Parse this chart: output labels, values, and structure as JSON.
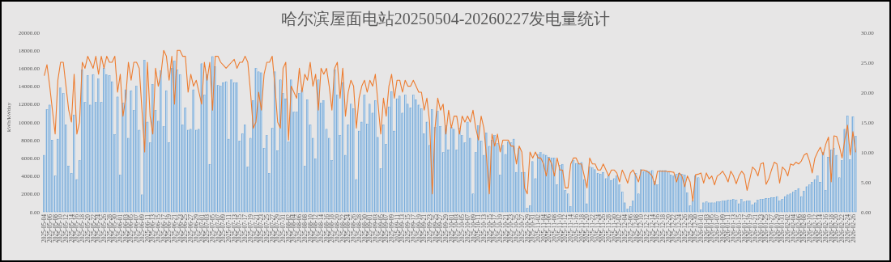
{
  "chart_data": {
    "type": "bar",
    "title": "哈尔滨屋面电站20250504-20260227发电量统计",
    "ylabel": "kWh/kWday",
    "categories": [
      "2025-05-04",
      null,
      "2025-05-06",
      null,
      "2025-05-08",
      null,
      "2025-05-10",
      null,
      "2025-05-12",
      null,
      "2025-05-14",
      null,
      "2025-05-16",
      null,
      "2025-05-18",
      null,
      "2025-05-20",
      null,
      "2025-05-22",
      null,
      "2025-05-24",
      null,
      "2025-05-26",
      null,
      "2025-05-28",
      null,
      "2025-05-30",
      null,
      "2025-06-01",
      null,
      "2025-06-03",
      null,
      "2025-06-05",
      null,
      "2025-06-07",
      null,
      "2025-06-09",
      null,
      "2025-06-11",
      null,
      "2025-06-13",
      null,
      "2025-06-15",
      null,
      "2025-06-17",
      null,
      "2025-06-19",
      null,
      "2025-06-21",
      null,
      "2025-06-23",
      null,
      "2025-06-25",
      null,
      "2025-06-27",
      null,
      "2025-06-29",
      null,
      "2025-07-01",
      null,
      "2025-07-03",
      null,
      "2025-07-05",
      null,
      "2025-07-07",
      null,
      "2025-07-09",
      null,
      "2025-07-11",
      null,
      "2025-07-13",
      null,
      "2025-07-15",
      null,
      "2025-07-17",
      null,
      "2025-07-19",
      null,
      "2025-07-21",
      null,
      "2025-07-23",
      null,
      "2025-07-25",
      null,
      "2025-07-27",
      null,
      "2025-07-29",
      null,
      "2025-07-31",
      null,
      "2025-08-02",
      null,
      "2025-08-04",
      null,
      "2025-08-06",
      null,
      "2025-08-08",
      null,
      "2025-08-10",
      null,
      "2025-08-12",
      null,
      "2025-08-14",
      null,
      "2025-08-16",
      null,
      "2025-08-18",
      null,
      "2025-08-20",
      null,
      "2025-08-22",
      null,
      "2025-08-24",
      null,
      "2025-08-26",
      null,
      "2025-08-28",
      null,
      "2025-08-30",
      null,
      "2025-09-01",
      null,
      "2025-09-03",
      null,
      "2025-09-05",
      null,
      "2025-09-07",
      null,
      "2025-09-09",
      null,
      "2025-09-11",
      null,
      "2025-09-13",
      null,
      "2025-09-15",
      null,
      "2025-09-17",
      null,
      "2025-09-19",
      null,
      "2025-09-21",
      null,
      "2025-09-23",
      null,
      "2025-09-25",
      null,
      "2025-09-27",
      null,
      "2025-09-29",
      null,
      "2025-10-01",
      null,
      "2025-10-03",
      null,
      "2025-10-05",
      null,
      "2025-10-07",
      null,
      "2025-10-09",
      null,
      "2025-10-11",
      null,
      "2025-10-13",
      null,
      "2025-10-15",
      null,
      "2025-10-17",
      null,
      "2025-10-19",
      null,
      "2025-10-21",
      null,
      "2025-10-23",
      null,
      "2025-10-25",
      null,
      "2025-10-27",
      null,
      "2025-10-29",
      null,
      "2025-10-31",
      null,
      "2025-11-02",
      null,
      "2025-11-04",
      null,
      "2025-11-06",
      null,
      "2025-11-08",
      null,
      "2025-11-10",
      null,
      "2025-11-12",
      null,
      "2025-11-14",
      null,
      "2025-11-16",
      null,
      "2025-11-18",
      null,
      "2025-11-20",
      null,
      "2025-11-22",
      null,
      "2025-11-24",
      null,
      "2025-11-26",
      null,
      "2025-11-28",
      null,
      "2025-11-30",
      null,
      "2025-12-02",
      null,
      "2025-12-04",
      null,
      "2025-12-06",
      null,
      "2025-12-08",
      null,
      "2025-12-10",
      null,
      "2025-12-12",
      null,
      "2025-12-14",
      null,
      "2025-12-16",
      null,
      "2025-12-18",
      null,
      "2025-12-20",
      null,
      "2025-12-22",
      null,
      "2025-12-24",
      null,
      "2025-12-26",
      null,
      "2025-12-28",
      null,
      "2025-12-30",
      null,
      "2026-01-01",
      null,
      "2026-01-03",
      null,
      "2026-01-05",
      null,
      "2026-01-07",
      null,
      "2026-01-09",
      null,
      "2026-01-11",
      null,
      "2026-01-13",
      null,
      "2026-01-15",
      null,
      "2026-01-17",
      null,
      "2026-01-19",
      null,
      "2026-01-21",
      null,
      "2026-01-23",
      null,
      "2026-01-25",
      null,
      "2026-01-27",
      null,
      "2026-01-29",
      null,
      "2026-01-31",
      null,
      "2026-02-02",
      null,
      "2026-02-04",
      null,
      "2026-02-06",
      null,
      "2026-02-08",
      null,
      "2026-02-10",
      null,
      "2026-02-12",
      null,
      "2026-02-14",
      null,
      "2026-02-16",
      null,
      "2026-02-18",
      null,
      "2026-02-20",
      null,
      "2026-02-22",
      null,
      "2026-02-24",
      null,
      "2026-02-26",
      null
    ],
    "series": [
      {
        "color": "#5b9bd5",
        "values": [
          6300,
          11400,
          11900,
          8000,
          4000,
          8100,
          13800,
          13200,
          9700,
          5100,
          4300,
          10800,
          3600,
          5700,
          15800,
          12200,
          15200,
          11900,
          15300,
          12200,
          14800,
          12200,
          16000,
          15300,
          15200,
          14500,
          8600,
          12800,
          4100,
          12100,
          13600,
          8200,
          13500,
          11300,
          14000,
          9100,
          1900,
          16900,
          10000,
          7700,
          14200,
          11300,
          10100,
          15700,
          9500,
          13500,
          7700,
          16000,
          16800,
          15800,
          15300,
          9700,
          11600,
          9100,
          9200,
          13600,
          9100,
          9200,
          16500,
          13000,
          15300,
          5300,
          17300,
          16200,
          14100,
          14000,
          14400,
          14500,
          8100,
          14700,
          14400,
          14400,
          7900,
          8700,
          9700,
          5000,
          8200,
          12400,
          16000,
          15600,
          15500,
          7100,
          8500,
          4300,
          9300,
          15600,
          6800,
          14700,
          13200,
          12600,
          7800,
          14700,
          11100,
          11100,
          13200,
          13600,
          5100,
          12500,
          9700,
          8200,
          5900,
          14700,
          12100,
          12400,
          9200,
          8200,
          5700,
          15800,
          13000,
          8500,
          14400,
          6300,
          9700,
          12000,
          11500,
          3600,
          9000,
          10000,
          13000,
          9800,
          12000,
          11000,
          12400,
          8300,
          4800,
          9700,
          7500,
          11700,
          13400,
          9000,
          12600,
          12900,
          11000,
          13000,
          12000,
          11600,
          13000,
          12500,
          11900,
          11500,
          8700,
          10000,
          7400,
          11400,
          9400,
          11200,
          9500,
          6600,
          9600,
          6900,
          9400,
          9200,
          6900,
          9300,
          8500,
          7700,
          10000,
          8200,
          2000,
          6600,
          9600,
          7900,
          6300,
          8800,
          7300,
          8000,
          8500,
          7600,
          4100,
          7400,
          6400,
          7800,
          7700,
          8100,
          4400,
          7100,
          4400,
          4400,
          400,
          700,
          5600,
          3700,
          6400,
          6600,
          6400,
          6300,
          6100,
          6000,
          6000,
          3000,
          5200,
          5300,
          2400,
          2000,
          600,
          5700,
          5400,
          5400,
          5500,
          3600,
          900,
          5000,
          4900,
          4700,
          4300,
          4200,
          4400,
          3700,
          4000,
          3500,
          3700,
          4000,
          3000,
          2200,
          1000,
          300,
          600,
          1200,
          4300,
          2000,
          4700,
          4500,
          4600,
          4500,
          4600,
          3400,
          3000,
          4600,
          4600,
          4600,
          4500,
          4100,
          4000,
          4200,
          4300,
          4200,
          4100,
          2100,
          700,
          1200,
          4000,
          3800,
          200,
          1000,
          1100,
          1000,
          1000,
          1000,
          1100,
          1100,
          1200,
          1200,
          1300,
          1300,
          1400,
          1300,
          900,
          1400,
          1100,
          1200,
          1200,
          800,
          1000,
          1300,
          1400,
          1400,
          1500,
          1500,
          1600,
          1600,
          1700,
          1200,
          1400,
          1700,
          1900,
          2000,
          2200,
          2400,
          2600,
          1700,
          2300,
          2800,
          3000,
          3300,
          3600,
          4000,
          3300,
          6600,
          2400,
          6100,
          6900,
          7100,
          6300,
          3800,
          5700,
          9200,
          10700,
          5800,
          10600,
          8400
        ]
      },
      {
        "type": "line",
        "axis": "y2",
        "color": "#ed7d31",
        "values": [
          22.8,
          24.6,
          21,
          17,
          13,
          22,
          25,
          25,
          21,
          17,
          15,
          23,
          13,
          15,
          25,
          24,
          26,
          25,
          24,
          26,
          23,
          26,
          24,
          26,
          25,
          25,
          26,
          20,
          23,
          16,
          19,
          25,
          22,
          25,
          25,
          24,
          17,
          10,
          25,
          16,
          13,
          24,
          21,
          23,
          27,
          26,
          22,
          26,
          18,
          27,
          27,
          26,
          26,
          20,
          23,
          21,
          22,
          20,
          18,
          25,
          22,
          25,
          17,
          26,
          26,
          25,
          24.5,
          24,
          24.5,
          25,
          25.5,
          24,
          25,
          25,
          26,
          25,
          20,
          14,
          15,
          20,
          17,
          23,
          25,
          25,
          26,
          21,
          15,
          14,
          24,
          25,
          12,
          21,
          20,
          19,
          24,
          20,
          23,
          22,
          25,
          21,
          23,
          17,
          24,
          23,
          24,
          21,
          17,
          24,
          25,
          19,
          24,
          16,
          20,
          22,
          21,
          14,
          19,
          21,
          22,
          20,
          22,
          21,
          23,
          18,
          13,
          19,
          16,
          21,
          23,
          19,
          22,
          22,
          20,
          22,
          21,
          21,
          22,
          21,
          20,
          20,
          17,
          19,
          15,
          3,
          14,
          19,
          17,
          18,
          13,
          17,
          14,
          16,
          16,
          13,
          16,
          15,
          16,
          15,
          17,
          14,
          12,
          16,
          14,
          9,
          3,
          13,
          11,
          13,
          10,
          12,
          12,
          12,
          11,
          11,
          8,
          11,
          10,
          4,
          3,
          10,
          9,
          10,
          9,
          9,
          8,
          6,
          9,
          8,
          6,
          9,
          7,
          7,
          4,
          4,
          8,
          9,
          9,
          8,
          8,
          6,
          4,
          9,
          8,
          8,
          7,
          7,
          8,
          7,
          6,
          7,
          7,
          6.5,
          5,
          7,
          6,
          4.8,
          6.5,
          7,
          6,
          5,
          7,
          7,
          6.8,
          6.5,
          6,
          4.5,
          6.8,
          6.8,
          6.8,
          6.8,
          6.7,
          6.7,
          6.6,
          5,
          6.5,
          6,
          4.2,
          6,
          5,
          1.8,
          6.2,
          6.3,
          6.5,
          4.8,
          6.5,
          5.5,
          6,
          4.5,
          6,
          6.3,
          6.8,
          6,
          5,
          6.8,
          6,
          4.7,
          6,
          6.8,
          6.2,
          3.6,
          5.5,
          7.5,
          7,
          6,
          8,
          8.2,
          4.6,
          5.5,
          7,
          8.3,
          8,
          4.8,
          7.5,
          7,
          6,
          8,
          7.8,
          8.3,
          8,
          8.5,
          9.5,
          9.8,
          8.5,
          6.5,
          9,
          10,
          10.8,
          9.5,
          11.3,
          12.5,
          5,
          12.7,
          12.6,
          11,
          9,
          12,
          14.5,
          9.5,
          13.4,
          10
        ]
      }
    ],
    "ylim": [
      0,
      20000
    ],
    "yticks": [
      {
        "value": 0,
        "label": "0.00"
      },
      {
        "value": 2000,
        "label": "2000.00"
      },
      {
        "value": 4000,
        "label": "4000.00"
      },
      {
        "value": 6000,
        "label": "6000.00"
      },
      {
        "value": 8000,
        "label": "8000.00"
      },
      {
        "value": 10000,
        "label": "10000.00"
      },
      {
        "value": 12000,
        "label": "12000.00"
      },
      {
        "value": 14000,
        "label": "14000.00"
      },
      {
        "value": 16000,
        "label": "16000.00"
      },
      {
        "value": 18000,
        "label": "18000.00"
      },
      {
        "value": 20000,
        "label": "20000.00"
      }
    ],
    "y2lim": [
      0,
      30
    ],
    "y2ticks": [
      {
        "value": 0,
        "label": "0.00"
      },
      {
        "value": 5,
        "label": "5.00"
      },
      {
        "value": 10,
        "label": "10.00"
      },
      {
        "value": 15,
        "label": "15.00"
      },
      {
        "value": 20,
        "label": "20.00"
      },
      {
        "value": 25,
        "label": "25.00"
      },
      {
        "value": 30,
        "label": "30.00"
      }
    ]
  }
}
